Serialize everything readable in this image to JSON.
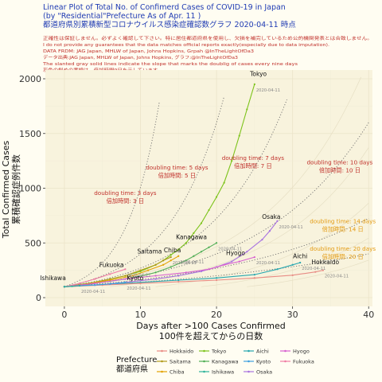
{
  "chart_data": {
    "type": "line",
    "title_lines": [
      "Linear Plot of Total No. of Confimerd Cases of COVID-19 in Japan",
      "(by \"Residential\"Prefecture As of  Apr. 11 )",
      "都道府県別累積新型コロナウイルス感染症確認数グラフ  2020-04-11 時点"
    ],
    "notes": [
      "正確性は保証しません。必ずよく確認して下さい。特に居住都道府県を使用し、欠損を補完しているため公的機関発表とは合致しません。",
      "I do not provide any guarantees that the data matches official reports exactly(especially due to data imputation).",
      "DATA FRDM: JAG Japan, MHLW of Japan, Johns Hopkins, Grpah @InTheLightOfDa3",
      "データ出典:JAG Japan, MHLW of Japan, Johns Hopkins, グラフ:@InTheLightOfDa3",
      "The slanted gray solid lines indicate the slope that marks the doublig of cases every nine days",
      "灰色の斜めの実線は、倍加時間9日を示しています。"
    ],
    "xlabel_lines": [
      "Days after >100 Cases Confirmed",
      "100件を超えてからの日数"
    ],
    "ylabel_lines": [
      "Total Confirmed Cases",
      "累積確認症例件数"
    ],
    "xlim": [
      -2.5,
      40.5
    ],
    "ylim": [
      -80,
      2080
    ],
    "x_ticks": [
      0,
      10,
      20,
      30,
      40
    ],
    "y_ticks": [
      0,
      500,
      1000,
      1500,
      2000
    ],
    "grid": true,
    "date_label": "2020-04-11",
    "doubling_lines": [
      {
        "days": 3,
        "label_en": "doubling time:  3  days",
        "label_ja": "倍加時間: 3 日",
        "color": "#c0302b",
        "label_x": 8,
        "label_y": 940
      },
      {
        "days": 5,
        "label_en": "doubling time:  5  days",
        "label_ja": "倍加時間: 5 日",
        "color": "#c0302b",
        "label_x": 14.8,
        "label_y": 1170
      },
      {
        "days": 7,
        "label_en": "doubling time:  7  days",
        "label_ja": "倍加時間: 7 日",
        "color": "#c0302b",
        "label_x": 24.8,
        "label_y": 1260
      },
      {
        "days": 10,
        "label_en": "doubling time:  10  days",
        "label_ja": "倍加時間: 10 日",
        "color": "#c0302b",
        "label_x": 36.2,
        "label_y": 1220
      },
      {
        "days": 14,
        "label_en": "doubling time:  14  days",
        "label_ja": "倍加時間: 14 日",
        "color": "#e39a10",
        "label_x": 36.6,
        "label_y": 680
      },
      {
        "days": 20,
        "label_en": "doubling time:  20  days",
        "label_ja": "倍加時間: 20 日",
        "color": "#e39a10",
        "label_x": 36.6,
        "label_y": 430
      }
    ],
    "series": [
      {
        "name": "Tokyo",
        "color": "#7cc31a",
        "label_x": 25.5,
        "label_y": 2025,
        "x": [
          0,
          2,
          4,
          6,
          8,
          10,
          12,
          13,
          14,
          15,
          16,
          17,
          18,
          19,
          20,
          21,
          22,
          23,
          24,
          25
        ],
        "y": [
          100,
          120,
          140,
          170,
          200,
          240,
          300,
          340,
          390,
          440,
          500,
          590,
          680,
          800,
          920,
          1050,
          1250,
          1480,
          1720,
          1950
        ]
      },
      {
        "name": "Osaka",
        "color": "#a873e0",
        "label_x": 27.2,
        "label_y": 720,
        "x": [
          0,
          4,
          8,
          12,
          15,
          18,
          20,
          22,
          24,
          26,
          27,
          28
        ],
        "y": [
          100,
          115,
          140,
          170,
          200,
          240,
          280,
          330,
          420,
          530,
          610,
          700
        ]
      },
      {
        "name": "Kanagawa",
        "color": "#4fae55",
        "label_x": 16.7,
        "label_y": 535,
        "x": [
          0,
          3,
          6,
          9,
          12,
          14,
          16,
          17,
          18,
          19,
          20
        ],
        "y": [
          100,
          120,
          150,
          180,
          230,
          280,
          340,
          380,
          420,
          460,
          500
        ]
      },
      {
        "name": "Saitama",
        "color": "#b09a1a",
        "label_x": 11.2,
        "label_y": 405,
        "x": [
          0,
          2,
          4,
          6,
          8,
          10,
          12,
          13,
          14
        ],
        "y": [
          100,
          115,
          140,
          170,
          200,
          250,
          300,
          340,
          370
        ]
      },
      {
        "name": "Chiba",
        "color": "#e2a100",
        "label_x": 14.2,
        "label_y": 415,
        "x": [
          0,
          3,
          6,
          9,
          11,
          13,
          14,
          15
        ],
        "y": [
          100,
          125,
          160,
          200,
          250,
          300,
          340,
          380
        ]
      },
      {
        "name": "Hyogo",
        "color": "#d75fd0",
        "label_x": 22.5,
        "label_y": 390,
        "x": [
          0,
          4,
          8,
          12,
          16,
          19,
          21,
          23,
          25
        ],
        "y": [
          100,
          130,
          170,
          200,
          230,
          260,
          300,
          330,
          370
        ]
      },
      {
        "name": "Fukuoka",
        "color": "#f07ca4",
        "label_x": 6.2,
        "label_y": 280,
        "x": [
          0,
          2,
          4,
          6,
          8
        ],
        "y": [
          100,
          130,
          170,
          215,
          260
        ]
      },
      {
        "name": "Aichi",
        "color": "#27a7b0",
        "label_x": 31,
        "label_y": 360,
        "x": [
          0,
          5,
          10,
          15,
          20,
          25,
          28,
          30,
          31
        ],
        "y": [
          100,
          120,
          140,
          160,
          180,
          210,
          260,
          300,
          320
        ]
      },
      {
        "name": "Hokkaido",
        "color": "#e88b84",
        "label_x": 34.3,
        "label_y": 305,
        "x": [
          0,
          5,
          10,
          15,
          20,
          25,
          30,
          33,
          34
        ],
        "y": [
          100,
          115,
          130,
          145,
          160,
          180,
          205,
          235,
          250
        ]
      },
      {
        "name": "Kyoto",
        "color": "#3ea0e0",
        "label_x": 9.3,
        "label_y": 160,
        "x": [
          0,
          2,
          4,
          6,
          7,
          8
        ],
        "y": [
          100,
          108,
          115,
          125,
          132,
          140
        ]
      },
      {
        "name": "Ishikawa",
        "color": "#2bb39a",
        "label_x": -1.5,
        "label_y": 160,
        "x": [
          0,
          1,
          2
        ],
        "y": [
          100,
          104,
          110
        ]
      }
    ],
    "legend": {
      "title_lines": [
        "Prefecture",
        "都道府県"
      ],
      "position": "bottom",
      "columns": [
        [
          "Hokkaido",
          "Saitama",
          "Chiba"
        ],
        [
          "Tokyo",
          "Kanagawa",
          "Ishikawa"
        ],
        [
          "Aichi",
          "Kyoto",
          "Osaka"
        ],
        [
          "Hyogo",
          "Fukuoka"
        ]
      ]
    }
  }
}
